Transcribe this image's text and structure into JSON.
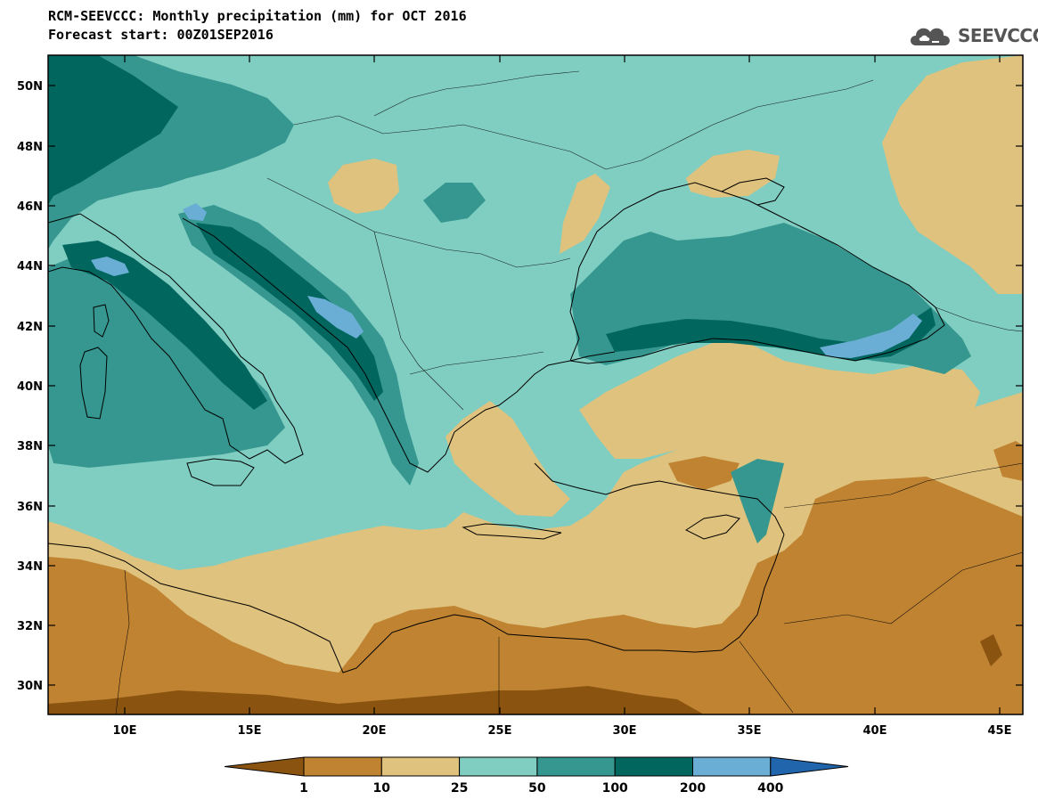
{
  "header": {
    "title": "RCM-SEEVCCC: Monthly precipitation (mm) for OCT 2016",
    "subtitle": "Forecast start: 00Z01SEP2016"
  },
  "logo": {
    "text": "SEEVCCC",
    "icon": "cloud-icon"
  },
  "axes": {
    "lat_labels": [
      "50N",
      "48N",
      "46N",
      "44N",
      "42N",
      "40N",
      "38N",
      "36N",
      "34N",
      "32N",
      "30N"
    ],
    "lon_labels": [
      "10E",
      "15E",
      "20E",
      "25E",
      "30E",
      "35E",
      "40E",
      "45E"
    ]
  },
  "colorbar": {
    "labels": [
      "1",
      "10",
      "25",
      "50",
      "100",
      "200",
      "400"
    ],
    "colors": [
      "#8a5410",
      "#bf8332",
      "#dfc27d",
      "#80cdc1",
      "#35978f",
      "#01665e",
      "#6aaed6",
      "#2166ac"
    ]
  },
  "palette": {
    "ocean_dry": "#dfc27d",
    "desert": "#bf8332",
    "very_dry": "#8a5410",
    "moderate": "#80cdc1",
    "wet": "#35978f",
    "very_wet": "#01665e",
    "extreme": "#6aaed6"
  }
}
